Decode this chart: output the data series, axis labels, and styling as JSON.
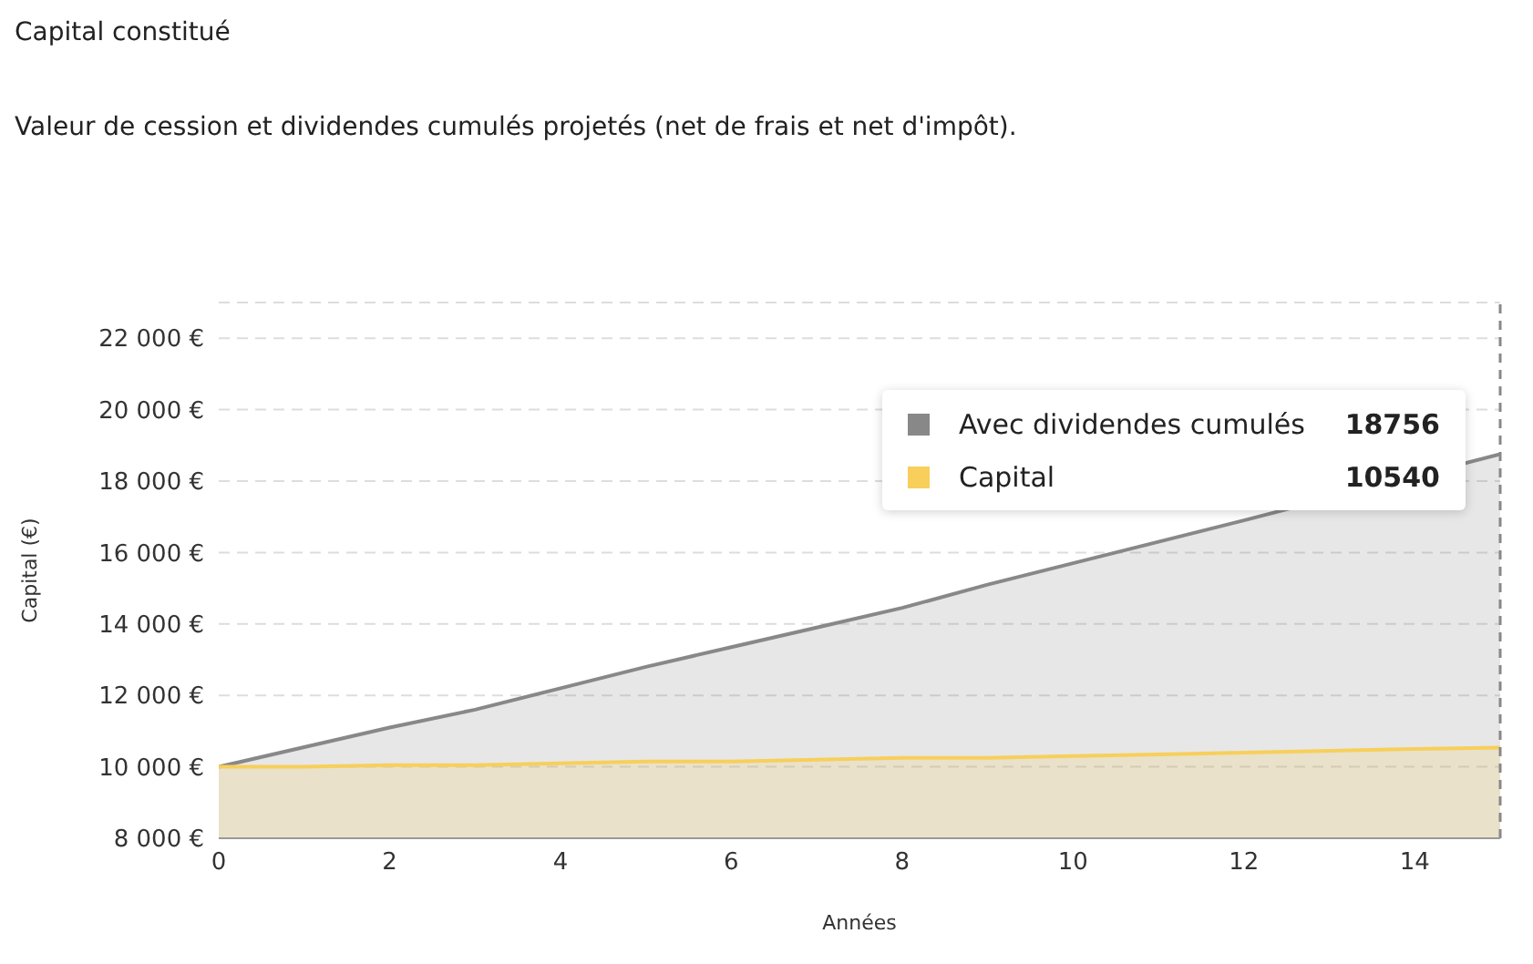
{
  "chart_data": {
    "type": "area",
    "title": "Capital constitué",
    "subtitle": "Valeur de cession et dividendes cumulés projetés (net de frais et net d'impôt).",
    "xlabel": "Années",
    "ylabel": "Capital (€)",
    "x": [
      0,
      1,
      2,
      3,
      4,
      5,
      6,
      7,
      8,
      9,
      10,
      11,
      12,
      13,
      14,
      15
    ],
    "annotations": [
      "18756",
      "10540"
    ],
    "series": [
      {
        "name": "Avec dividendes cumulés",
        "color": "#888888",
        "values": [
          10000,
          10550,
          11100,
          11600,
          12200,
          12800,
          13350,
          13900,
          14450,
          15100,
          15700,
          16300,
          16900,
          null,
          null,
          18756
        ]
      },
      {
        "name": "Capital",
        "color": "#f7cf5a",
        "values": [
          10000,
          10000,
          10050,
          10050,
          10100,
          10150,
          10150,
          10200,
          10250,
          10250,
          10300,
          10350,
          10400,
          10450,
          10500,
          10540
        ]
      }
    ],
    "xlim": [
      0,
      15
    ],
    "xticks": [
      0,
      2,
      4,
      6,
      8,
      10,
      12,
      14
    ],
    "ylim": [
      8000,
      23000
    ],
    "yticks": [
      {
        "value": 8000,
        "label": "8 000 €"
      },
      {
        "value": 10000,
        "label": "10 000 €"
      },
      {
        "value": 12000,
        "label": "12 000 €"
      },
      {
        "value": 14000,
        "label": "14 000 €"
      },
      {
        "value": 16000,
        "label": "16 000 €"
      },
      {
        "value": 18000,
        "label": "18 000 €"
      },
      {
        "value": 20000,
        "label": "20 000 €"
      },
      {
        "value": 22000,
        "label": "22 000 €"
      }
    ],
    "ref_lines": [
      {
        "axis": "x",
        "value": 15,
        "color": "#888888",
        "line_style": "dashed"
      }
    ],
    "grid": "y",
    "legend": "top right",
    "marker": "none"
  }
}
